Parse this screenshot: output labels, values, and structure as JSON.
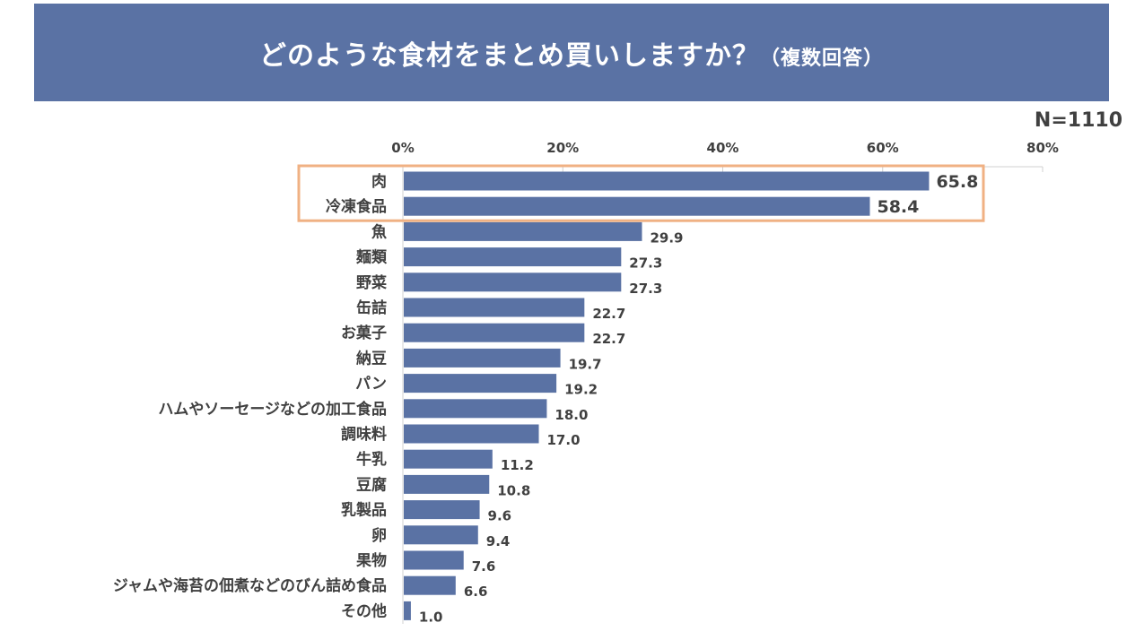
{
  "title": "どのような食材をまとめ買いしますか？",
  "title_suffix": "（複数回答）",
  "sample_size": "N=1110",
  "colors": {
    "bar": "#5a72a4",
    "highlight": "#f0b183",
    "banner": "#5a72a4",
    "text": "#404040"
  },
  "chart_data": {
    "type": "bar",
    "orientation": "horizontal",
    "title": "どのような食材をまとめ買いしますか？（複数回答）",
    "xlabel": "",
    "ylabel": "",
    "xlim": [
      0,
      80
    ],
    "ticks": [
      "0%",
      "20%",
      "40%",
      "60%",
      "80%"
    ],
    "tick_values": [
      0,
      20,
      40,
      60,
      80
    ],
    "categories": [
      "肉",
      "冷凍食品",
      "魚",
      "麺類",
      "野菜",
      "缶詰",
      "お菓子",
      "納豆",
      "パン",
      "ハムやソーセージなどの加工食品",
      "調味料",
      "牛乳",
      "豆腐",
      "乳製品",
      "卵",
      "果物",
      "ジャムや海苔の佃煮などのびん詰め食品",
      "その他"
    ],
    "values": [
      65.8,
      58.4,
      29.9,
      27.3,
      27.3,
      22.7,
      22.7,
      19.7,
      19.2,
      18.0,
      17.0,
      11.2,
      10.8,
      9.6,
      9.4,
      7.6,
      6.6,
      1.0
    ],
    "value_labels": [
      "65.8",
      "58.4",
      "29.9",
      "27.3",
      "27.3",
      "22.7",
      "22.7",
      "19.7",
      "19.2",
      "18.0",
      "17.0",
      "11.2",
      "10.8",
      "9.6",
      "9.4",
      "7.6",
      "6.6",
      "1.0"
    ],
    "highlighted_categories": [
      "肉",
      "冷凍食品"
    ]
  }
}
